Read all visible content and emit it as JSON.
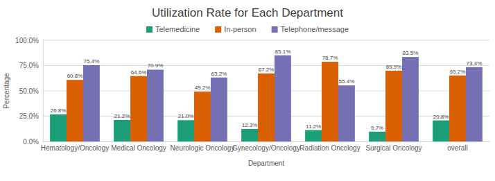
{
  "chart_data": {
    "type": "bar",
    "title": "Utilization Rate for Each Department",
    "x_label": "Department",
    "y_label": "Percentage",
    "categories": [
      "Hematology/Oncology",
      "Medical Oncology",
      "Neurologic Oncology",
      "Gynecology/Oncology",
      "Radiation Oncology",
      "Surgical Oncology",
      "overall"
    ],
    "series": [
      {
        "name": "Telemedicine",
        "color": "#1b9e77",
        "values": [
          26.8,
          21.2,
          21.0,
          12.3,
          11.2,
          9.7,
          20.8
        ],
        "value_labels": [
          "26.8%",
          "21.2%",
          "21.0%",
          "12.3%",
          "11.2%",
          "9.7%",
          "20.8%"
        ]
      },
      {
        "name": "In-person",
        "color": "#d95f02",
        "values": [
          60.8,
          64.6,
          49.2,
          67.2,
          78.7,
          69.9,
          65.2
        ],
        "value_labels": [
          "60.8%",
          "64.6%",
          "49.2%",
          "67.2%",
          "78.7%",
          "69.9%",
          "65.2%"
        ]
      },
      {
        "name": "Telephone/message",
        "color": "#7570b3",
        "values": [
          75.4,
          70.9,
          63.2,
          85.1,
          55.4,
          83.5,
          73.4
        ],
        "value_labels": [
          "75.4%",
          "70.9%",
          "63.2%",
          "85.1%",
          "55.4%",
          "83.5%",
          "73.4%"
        ]
      }
    ],
    "ylim": [
      0,
      100
    ],
    "yticks": [
      {
        "value": 0,
        "label": "0.0%"
      },
      {
        "value": 25,
        "label": "25.0%"
      },
      {
        "value": 50,
        "label": "50.0%"
      },
      {
        "value": 75,
        "label": "75.0%"
      },
      {
        "value": 100,
        "label": "100.0%"
      }
    ],
    "grid": true,
    "legend": "top",
    "data_labels": true
  }
}
